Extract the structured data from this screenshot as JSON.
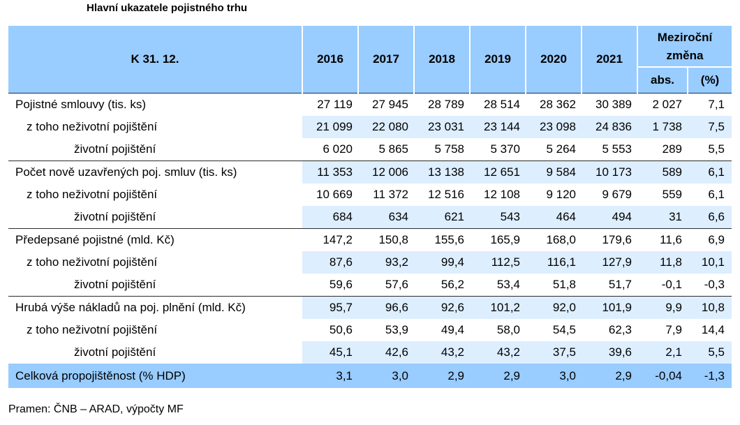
{
  "title": "Hlavní ukazatele pojistného trhu",
  "header": {
    "label": "K 31. 12.",
    "years": [
      "2016",
      "2017",
      "2018",
      "2019",
      "2020",
      "2021"
    ],
    "change_label": "Meziroční změna",
    "abs_label": "abs.",
    "pct_label": "(%)"
  },
  "rows": [
    {
      "label": "Pojistné smlouvy (tis. ks)",
      "level": 0,
      "values": [
        "27 119",
        "27 945",
        "28 789",
        "28 514",
        "28 362",
        "30 389"
      ],
      "abs": "2 027",
      "pct": "7,1"
    },
    {
      "label": "z toho neživotní pojištění",
      "level": 1,
      "values": [
        "21 099",
        "22 080",
        "23 031",
        "23 144",
        "23 098",
        "24 836"
      ],
      "abs": "1 738",
      "pct": "7,5"
    },
    {
      "label": "životní pojištění",
      "level": 2,
      "values": [
        "6 020",
        "5 865",
        "5 758",
        "5 370",
        "5 264",
        "5 553"
      ],
      "abs": "289",
      "pct": "5,5"
    },
    {
      "label": "Počet nově uzavřených poj. smluv (tis. ks)",
      "level": 0,
      "values": [
        "11 353",
        "12 006",
        "13 138",
        "12 651",
        "9 584",
        "10 173"
      ],
      "abs": "589",
      "pct": "6,1"
    },
    {
      "label": "z toho neživotní pojištění",
      "level": 1,
      "values": [
        "10 669",
        "11 372",
        "12 516",
        "12 108",
        "9 120",
        "9 679"
      ],
      "abs": "559",
      "pct": "6,1"
    },
    {
      "label": "životní pojištění",
      "level": 2,
      "values": [
        "684",
        "634",
        "621",
        "543",
        "464",
        "494"
      ],
      "abs": "31",
      "pct": "6,6"
    },
    {
      "label": "Předepsané pojistné (mld. Kč)",
      "level": 0,
      "values": [
        "147,2",
        "150,8",
        "155,6",
        "165,9",
        "168,0",
        "179,6"
      ],
      "abs": "11,6",
      "pct": "6,9"
    },
    {
      "label": "z toho neživotní pojištění",
      "level": 1,
      "values": [
        "87,6",
        "93,2",
        "99,4",
        "112,5",
        "116,1",
        "127,9"
      ],
      "abs": "11,8",
      "pct": "10,1"
    },
    {
      "label": "životní pojištění",
      "level": 2,
      "values": [
        "59,6",
        "57,6",
        "56,2",
        "53,4",
        "51,8",
        "51,7"
      ],
      "abs": "-0,1",
      "pct": "-0,3"
    },
    {
      "label": "Hrubá výše nákladů na poj. plnění (mld. Kč)",
      "level": 0,
      "values": [
        "95,7",
        "96,6",
        "92,6",
        "101,2",
        "92,0",
        "101,9"
      ],
      "abs": "9,9",
      "pct": "10,8"
    },
    {
      "label": "z toho neživotní pojištění",
      "level": 1,
      "values": [
        "50,6",
        "53,9",
        "49,4",
        "58,0",
        "54,5",
        "62,3"
      ],
      "abs": "7,9",
      "pct": "14,4"
    },
    {
      "label": "životní pojištění",
      "level": 2,
      "values": [
        "45,1",
        "42,6",
        "43,2",
        "43,2",
        "37,5",
        "39,6"
      ],
      "abs": "2,1",
      "pct": "5,5"
    }
  ],
  "total": {
    "label": "Celková propojištěnost (% HDP)",
    "values": [
      "3,1",
      "3,0",
      "2,9",
      "2,9",
      "3,0",
      "2,9"
    ],
    "abs": "-0,04",
    "pct": "-1,3"
  },
  "source": "Pramen: ČNB – ARAD, výpočty MF",
  "colors": {
    "header_bg": "#99ccff",
    "alt_row_bg": "#ddeeff",
    "rule": "#2b2b2b"
  }
}
